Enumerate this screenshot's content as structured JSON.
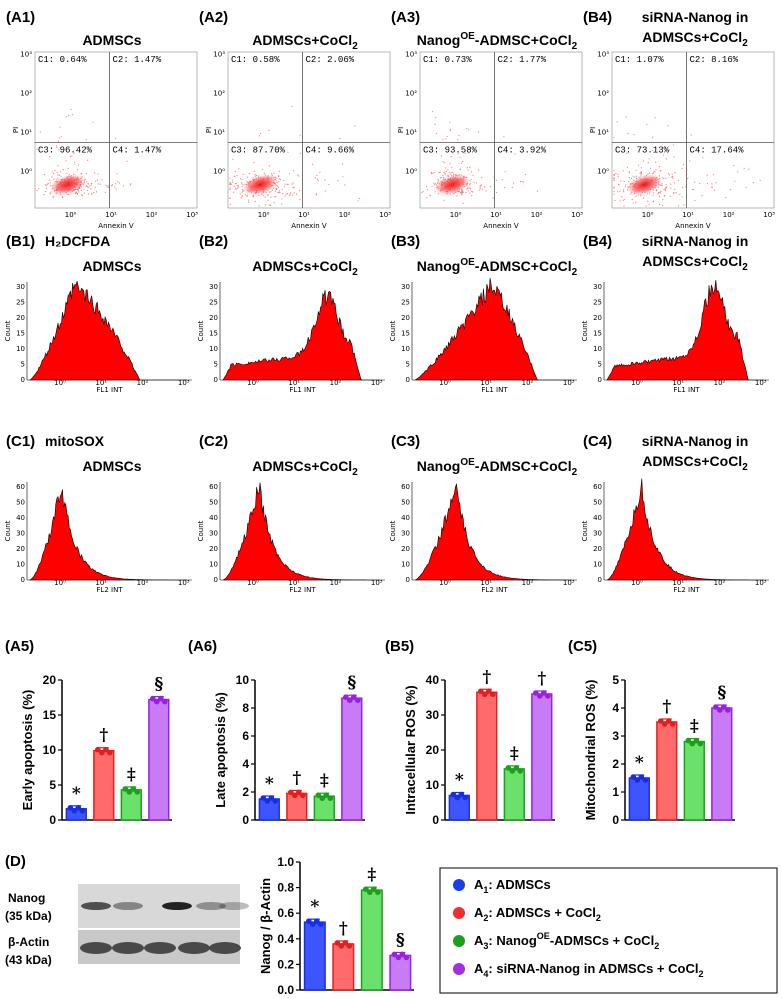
{
  "flow_section": {
    "panels": [
      {
        "label": "(A1)",
        "title": "ADMSCs",
        "title_sup": "",
        "title_rest": "",
        "line2": "",
        "q": [
          "C1: 0.64%",
          "C2: 1.47%",
          "C3: 96.42%",
          "C4: 1.47%"
        ]
      },
      {
        "label": "(A2)",
        "title": "ADMSCs+CoCl",
        "title_sub": "2",
        "line2": "",
        "q": [
          "C1: 0.58%",
          "C2: 2.06%",
          "C3: 87.70%",
          "C4: 9.66%"
        ]
      },
      {
        "label": "(A3)",
        "title": "Nanog",
        "title_sup": "OE",
        "title_rest": "-ADMSC+CoCl",
        "title_sub": "2",
        "line2": "",
        "q": [
          "C1: 0.73%",
          "C2: 1.77%",
          "C3: 93.58%",
          "C4: 3.92%"
        ]
      },
      {
        "label": "(B4)",
        "title": "siRNA-Nanog in",
        "line2": "ADMSCs+CoCl",
        "title_sub": "2",
        "q": [
          "C1: 1.07%",
          "C2: 8.16%",
          "C3: 73.13%",
          "C4: 17.64%"
        ]
      }
    ],
    "x_axis": "Annexin V",
    "y_axis": "PI",
    "ticks": {
      "x": [
        "10⁰",
        "10¹",
        "10²",
        "10³"
      ],
      "y": [
        "10⁰",
        "10¹",
        "10²",
        "10³"
      ]
    }
  },
  "ros_section": {
    "tag": "H₂DCFDA",
    "labels": [
      "(B1)",
      "(B2)",
      "(B3)",
      "(B4)"
    ],
    "x_axis": "FL1 INT",
    "y_axis": "Count",
    "y_ticks": [
      "0",
      "5",
      "10",
      "15",
      "20",
      "25",
      "30"
    ]
  },
  "mito_section": {
    "tag": "mitoSOX",
    "labels": [
      "(C1)",
      "(C2)",
      "(C3)",
      "(C4)"
    ],
    "x_axis": "FL2 INT",
    "y_axis": "Count",
    "y_ticks": [
      "0",
      "10",
      "20",
      "30",
      "40",
      "50",
      "60"
    ]
  },
  "group_titles": {
    "g1": "ADMSCs",
    "g2": "ADMSCs+CoCl",
    "g3a": "Nanog",
    "g3sup": "OE",
    "g3b": "-ADMSC+CoCl",
    "g4a": "siRNA-Nanog in",
    "g4b": "ADMSCs+CoCl",
    "sub2": "2",
    "x_label_10": "10",
    "tick_exp": [
      "0",
      "1",
      "2",
      "3"
    ]
  },
  "chart_data": [
    {
      "label": "(A5)",
      "type": "bar",
      "ylabel": "Early apoptosis (%)",
      "ylim": [
        0,
        20
      ],
      "yticks": [
        "0",
        "5",
        "10",
        "15",
        "20"
      ],
      "values": [
        1.6,
        9.9,
        4.3,
        17.2
      ],
      "symbols": [
        "*",
        "†",
        "‡",
        "§"
      ]
    },
    {
      "label": "(A6)",
      "type": "bar",
      "ylabel": "Late apoptosis (%)",
      "ylim": [
        0,
        10
      ],
      "yticks": [
        "0",
        "2",
        "4",
        "6",
        "8",
        "10"
      ],
      "values": [
        1.5,
        1.9,
        1.7,
        8.7
      ],
      "symbols": [
        "*",
        "†",
        "‡",
        "§"
      ]
    },
    {
      "label": "(B5)",
      "type": "bar",
      "ylabel": "Intracellular ROS (%)",
      "ylim": [
        0,
        40
      ],
      "yticks": [
        "0",
        "10",
        "20",
        "30",
        "40"
      ],
      "values": [
        7,
        36.5,
        14.6,
        36
      ],
      "symbols": [
        "*",
        "†",
        "‡",
        "†"
      ]
    },
    {
      "label": "(C5)",
      "type": "bar",
      "ylabel": "Mitochondrial ROS (%)",
      "ylim": [
        0,
        5
      ],
      "yticks": [
        "0",
        "1",
        "2",
        "3",
        "4",
        "5"
      ],
      "values": [
        1.5,
        3.5,
        2.8,
        4.0
      ],
      "symbols": [
        "*",
        "†",
        "‡",
        "§"
      ]
    },
    {
      "label": "(D)",
      "type": "bar",
      "ylabel": "Nanog / β-Actin",
      "ylim": [
        0,
        1.0
      ],
      "yticks": [
        "0.0",
        "0.2",
        "0.4",
        "0.6",
        "0.8",
        "1.0"
      ],
      "values": [
        0.53,
        0.36,
        0.78,
        0.27
      ],
      "symbols": [
        "*",
        "†",
        "‡",
        "§"
      ]
    }
  ],
  "western": {
    "label": "(D)",
    "rows": [
      "Nanog",
      "(35 kDa)",
      "β-Actin",
      "(43 kDa)"
    ]
  },
  "legend": {
    "items": [
      {
        "pre": "A",
        "sub": "1",
        "text": ": ADMSCs",
        "sup": "",
        "text2": "",
        "color": "#1a3cf0"
      },
      {
        "pre": "A",
        "sub": "2",
        "text": ": ADMSCs + CoCl",
        "sup": "",
        "sub2": "2",
        "color": "#f03030"
      },
      {
        "pre": "A",
        "sub": "3",
        "text": ": Nanog",
        "sup": "OE",
        "text2": "-ADMSCs + CoCl",
        "sub2": "2",
        "color": "#1ca01c"
      },
      {
        "pre": "A",
        "sub": "4",
        "text": ": siRNA-Nanog in ADMSCs + CoCl",
        "sup": "",
        "sub2": "2",
        "color": "#a030e0"
      }
    ]
  },
  "colors": {
    "blue": "#3d55ff",
    "red": "#ff6a6a",
    "green": "#6be06b",
    "purple": "#c77cf5",
    "blue_edge": "#1a2ee0",
    "red_edge": "#e02020",
    "green_edge": "#1ca01c",
    "purple_edge": "#9a20e0"
  }
}
